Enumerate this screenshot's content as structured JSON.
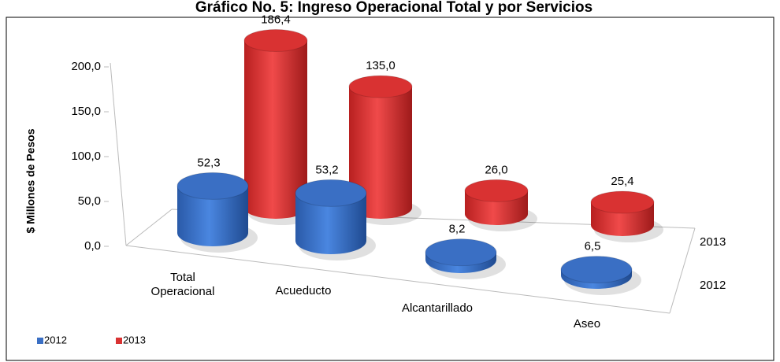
{
  "chart_data": {
    "type": "bar3d",
    "title": "Gráfico No. 5: Ingreso Operacional Total y por Servicios",
    "y_label": "$ Millones de Pesos",
    "categories": [
      "Total Operacional",
      "Acueducto",
      "Alcantarillado",
      "Aseo"
    ],
    "series": [
      {
        "name": "2012",
        "color": "#3a6fc4",
        "values": [
          52.3,
          53.2,
          8.2,
          6.5
        ],
        "value_labels": [
          "52,3",
          "53,2",
          "8,2",
          "6,5"
        ]
      },
      {
        "name": "2013",
        "color": "#d93232",
        "values": [
          186.4,
          135.0,
          26.0,
          25.4
        ],
        "value_labels": [
          "186,4",
          "135,0",
          "26,0",
          "25,4"
        ]
      }
    ],
    "ylim": [
      0,
      200
    ],
    "yticks": [
      {
        "value": 0,
        "label": "0,0"
      },
      {
        "value": 50,
        "label": "50,0"
      },
      {
        "value": 100,
        "label": "100,0"
      },
      {
        "value": 150,
        "label": "150,0"
      },
      {
        "value": 200,
        "label": "200,0"
      }
    ],
    "legend": "bottom-left"
  }
}
